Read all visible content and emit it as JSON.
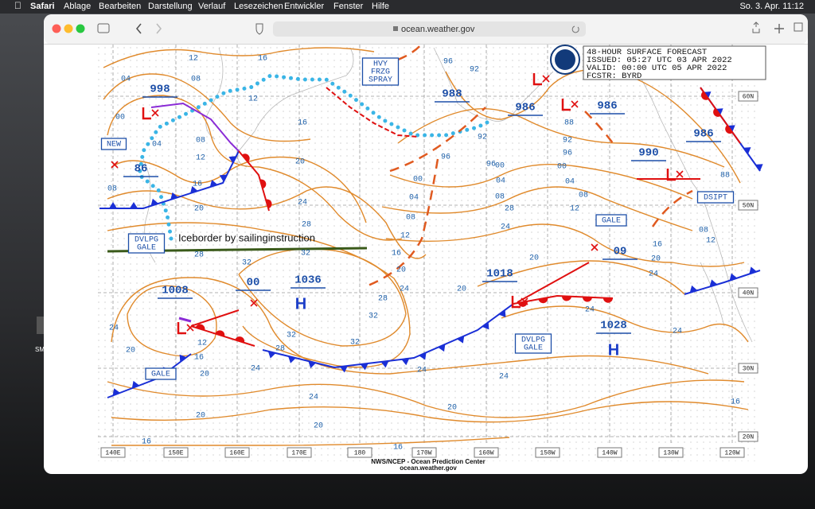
{
  "menubar": {
    "app": "Safari",
    "menus": [
      "Ablage",
      "Bearbeiten",
      "Darstellung",
      "Verlauf",
      "Lesezeichen",
      "Entwickler",
      "Fenster",
      "Hilfe"
    ],
    "clock": "So. 3. Apr. 11:12"
  },
  "desktop": {
    "icon_label": "SMS"
  },
  "browser": {
    "url": "ocean.weather.gov"
  },
  "map": {
    "header": [
      "48-HOUR SURFACE FORECAST",
      "ISSUED: 05:27 UTC 03 APR 2022",
      "VALID:  00:00 UTC 05 APR 2022",
      "FCSTR: BYRD"
    ],
    "footer": [
      "NWS/NCEP - Ocean Prediction Center",
      "ocean.weather.gov"
    ],
    "longitudes": [
      "140E",
      "150E",
      "160E",
      "170E",
      "180",
      "170W",
      "160W",
      "150W",
      "140W",
      "130W",
      "120W"
    ],
    "latitudes": [
      "60N",
      "50N",
      "40N",
      "30N",
      "20N"
    ],
    "pressure_centers": [
      "998",
      "86",
      "1008",
      "00",
      "1036",
      "988",
      "986",
      "986",
      "990",
      "986",
      "1018",
      "09",
      "1028"
    ],
    "high_marker": "H",
    "boxes": [
      [
        "HVY",
        "FRZG",
        "SPRAY"
      ],
      [
        "DVLPG",
        "GALE"
      ],
      [
        "DVLPG",
        "GALE"
      ],
      [
        "GALE"
      ],
      [
        "GALE"
      ],
      [
        "NEW"
      ],
      [
        "DSIPT"
      ]
    ],
    "isobar_labels": [
      "12",
      "16",
      "04",
      "08",
      "12",
      "00",
      "04",
      "08",
      "16",
      "12",
      "20",
      "16",
      "08",
      "24",
      "20",
      "28",
      "28",
      "32",
      "32",
      "24",
      "20",
      "16",
      "12",
      "32",
      "28",
      "32",
      "32",
      "28",
      "24",
      "24",
      "20",
      "24",
      "20",
      "20",
      "16",
      "16",
      "20",
      "24",
      "24",
      "24",
      "24",
      "20",
      "20",
      "24",
      "20",
      "16",
      "12",
      "08",
      "12",
      "08",
      "04",
      "00",
      "96",
      "92",
      "88",
      "92",
      "96",
      "96",
      "00",
      "04",
      "08",
      "12",
      "16",
      "20",
      "28",
      "24",
      "04",
      "00",
      "08",
      "96",
      "92",
      "88",
      "16"
    ],
    "annotation": "Iceborder by sailinginstruction"
  }
}
